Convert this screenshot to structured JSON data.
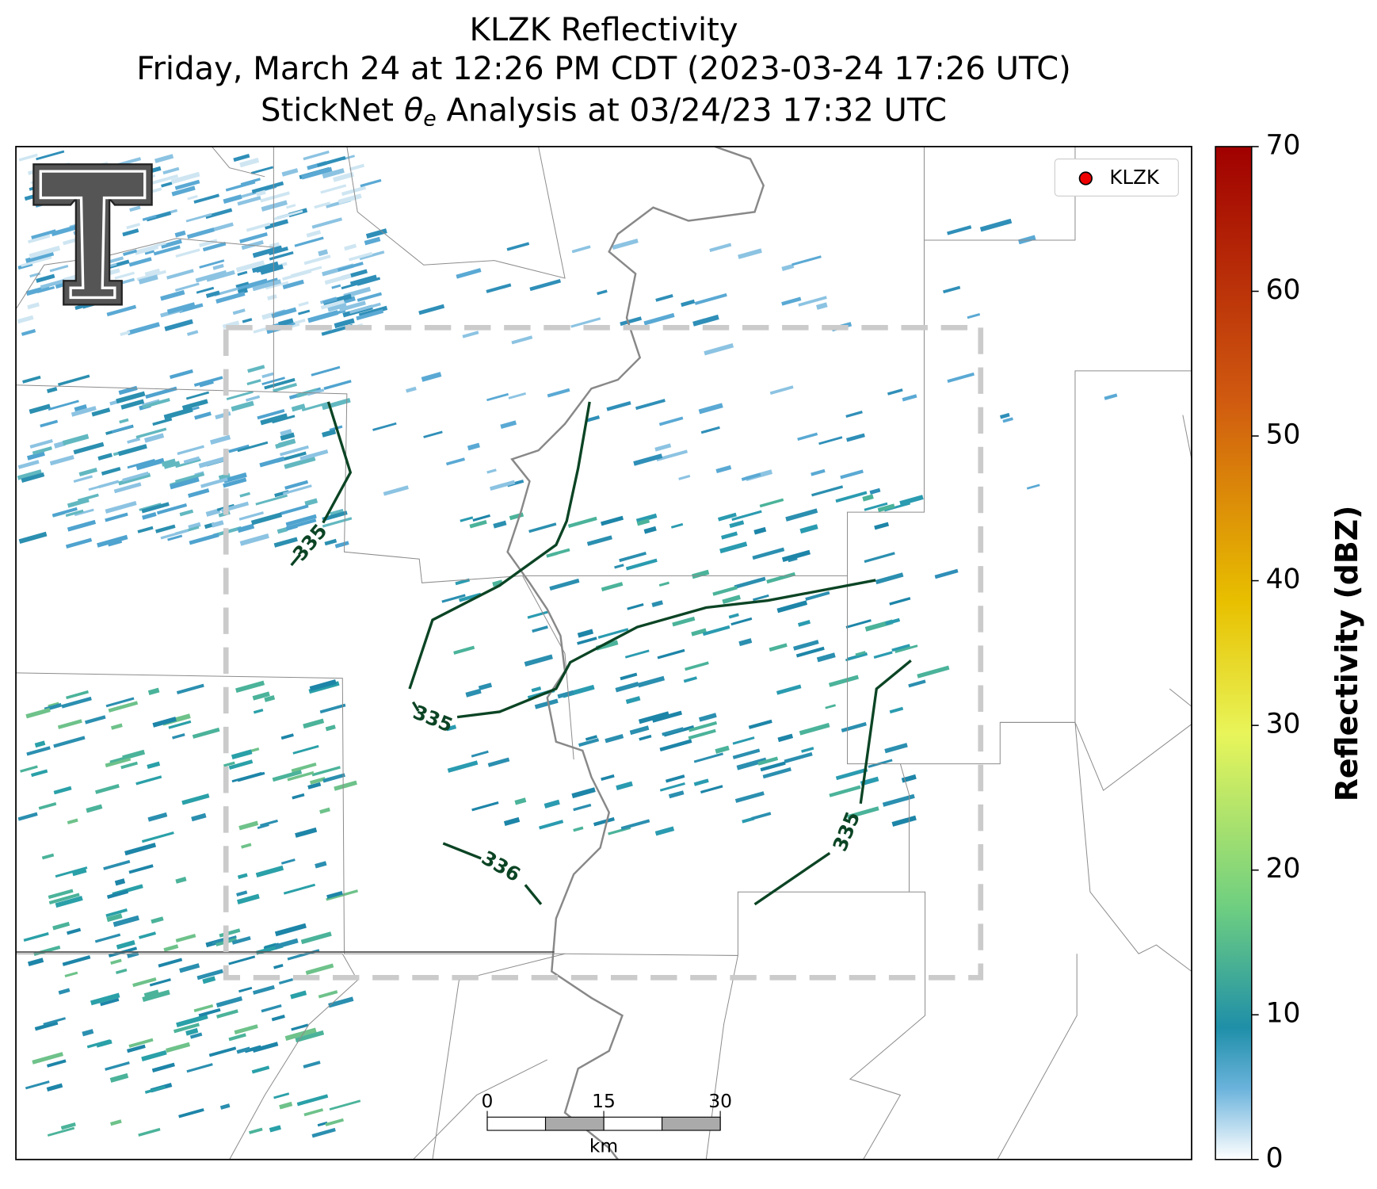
{
  "header": {
    "title": "KLZK Reflectivity",
    "subtitle": "Friday, March 24 at 12:26 PM CDT (2023-03-24 17:26 UTC)",
    "analysis": {
      "before": "StickNet",
      "symbol": "θ",
      "subscript": "e",
      "after": "Analysis at 03/24/23 17:32 UTC"
    }
  },
  "legend": {
    "label": "KLZK"
  },
  "contour_labels": [
    "335",
    "335",
    "336",
    "335"
  ],
  "scale_bar": {
    "ticks": [
      0,
      15,
      30
    ],
    "unit": "km"
  },
  "colorbar": {
    "label": "Reflectivity (dBZ)",
    "lim": [
      0,
      70
    ],
    "ticks": [
      0,
      10,
      20,
      30,
      40,
      50,
      60,
      70
    ]
  }
}
